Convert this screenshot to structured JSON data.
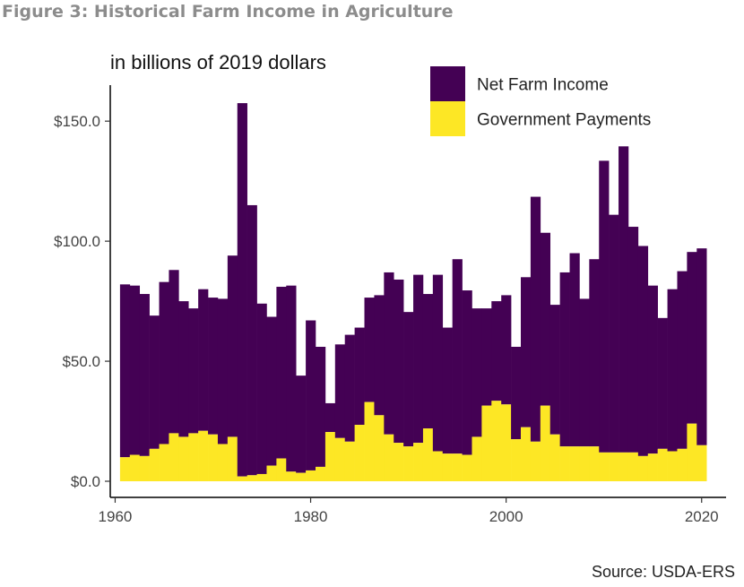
{
  "figure_title": "Figure 3: Historical Farm Income in Agriculture",
  "source": "Source: USDA-ERS",
  "colors": {
    "net_farm_income": "#440154",
    "government_payments": "#fde725",
    "axis": "#000000",
    "text": "#333333"
  },
  "chart_data": {
    "type": "bar",
    "stacked": true,
    "subtitle": "in billions of 2019 dollars",
    "x": [
      1961,
      1962,
      1963,
      1964,
      1965,
      1966,
      1967,
      1968,
      1969,
      1970,
      1971,
      1972,
      1973,
      1974,
      1975,
      1976,
      1977,
      1978,
      1979,
      1980,
      1981,
      1982,
      1983,
      1984,
      1985,
      1986,
      1987,
      1988,
      1989,
      1990,
      1991,
      1992,
      1993,
      1994,
      1995,
      1996,
      1997,
      1998,
      1999,
      2000,
      2001,
      2002,
      2003,
      2004,
      2005,
      2006,
      2007,
      2008,
      2009,
      2010,
      2011,
      2012,
      2013,
      2014,
      2015,
      2016,
      2017,
      2018,
      2019,
      2020
    ],
    "series": [
      {
        "name": "Net Farm Income",
        "color": "#440154",
        "values": [
          82,
          81.5,
          78,
          69,
          83,
          88,
          75,
          72,
          80,
          76.5,
          76,
          94,
          157.5,
          115,
          74,
          68.5,
          81,
          81.5,
          44,
          67,
          56,
          32.5,
          57,
          61,
          64,
          76.5,
          77.5,
          87,
          84,
          70.5,
          86,
          78,
          86,
          64,
          92.5,
          79.5,
          72,
          72,
          75,
          77.5,
          56,
          85,
          118.5,
          103.5,
          73.5,
          87,
          95,
          76,
          92.5,
          133.5,
          111,
          139.5,
          106,
          98,
          81.5,
          68,
          80,
          87.5,
          95.5,
          97
        ]
      },
      {
        "name": "Government Payments",
        "color": "#fde725",
        "values": [
          10,
          11,
          10.5,
          13.5,
          15.5,
          20,
          18.5,
          20,
          21,
          19.5,
          15.5,
          18.5,
          2,
          2.5,
          3,
          6.5,
          9.5,
          4,
          3.5,
          4.5,
          6,
          20.5,
          18,
          16.5,
          23.5,
          33,
          27.5,
          19.5,
          16,
          14.5,
          16,
          22,
          12.5,
          11.5,
          11.5,
          11,
          18.5,
          31.5,
          33.5,
          32,
          17.5,
          22.5,
          16.5,
          31.5,
          19.5,
          14.5,
          14.5,
          14.5,
          14.5,
          12,
          12,
          12,
          12,
          10.5,
          11.5,
          13.5,
          12.5,
          13.5,
          24,
          15
        ]
      }
    ],
    "y_tick_labels": [
      "$0.0",
      "$50.0",
      "$100.0",
      "$150.0"
    ],
    "y_ticks": [
      0,
      50,
      100,
      150
    ],
    "x_tick_labels": [
      "1960",
      "1980",
      "2000",
      "2020"
    ],
    "x_ticks": [
      1960,
      1980,
      2000,
      2020
    ],
    "ylim": [
      0,
      165
    ],
    "xlim": [
      1959.5,
      2022.5
    ],
    "legend_position": "top-right",
    "grid": false
  }
}
